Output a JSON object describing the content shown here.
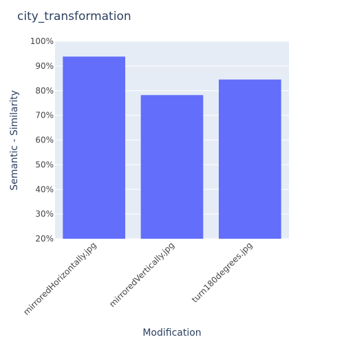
{
  "chart_data": {
    "type": "bar",
    "title": "city_transformation",
    "xlabel": "Modification",
    "ylabel": "Semantic - Similarity",
    "categories": [
      "mirroredHorizontally.jpg",
      "mirroredVertically.jpg",
      "turn180degrees.jpg"
    ],
    "values": [
      0.938,
      0.782,
      0.845
    ],
    "ylim": [
      0.2,
      1.0
    ],
    "yticks": [
      "20%",
      "30%",
      "40%",
      "50%",
      "60%",
      "70%",
      "80%",
      "90%",
      "100%"
    ],
    "grid": true,
    "colors": {
      "bar": "#636efa",
      "plot_bg": "#e5ecf6",
      "grid": "#ffffff",
      "paper_bg": "#ffffff"
    }
  }
}
